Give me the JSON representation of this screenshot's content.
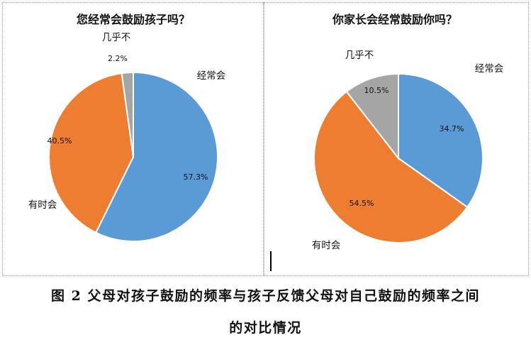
{
  "chart_data": [
    {
      "type": "pie",
      "title": "您经常会鼓励孩子吗？",
      "categories": [
        "经常会",
        "有时会",
        "几乎不"
      ],
      "values": [
        57.3,
        40.5,
        2.2
      ],
      "value_labels": [
        "57.3%",
        "40.5%",
        "2.2%"
      ],
      "colors": [
        "#5b9bd5",
        "#ed7d31",
        "#a5a5a5"
      ],
      "legend": "none"
    },
    {
      "type": "pie",
      "title": "你家长会经常鼓励你吗？",
      "categories": [
        "经常会",
        "有时会",
        "几乎不"
      ],
      "values": [
        34.7,
        54.5,
        10.5
      ],
      "value_labels": [
        "34.7%",
        "54.5%",
        "10.5%"
      ],
      "colors": [
        "#5b9bd5",
        "#ed7d31",
        "#a5a5a5"
      ],
      "legend": "none"
    }
  ],
  "caption": {
    "line1": "图 2 父母对孩子鼓励的频率与孩子反馈父母对自己鼓励的频率之间",
    "line2": "的对比情况"
  }
}
